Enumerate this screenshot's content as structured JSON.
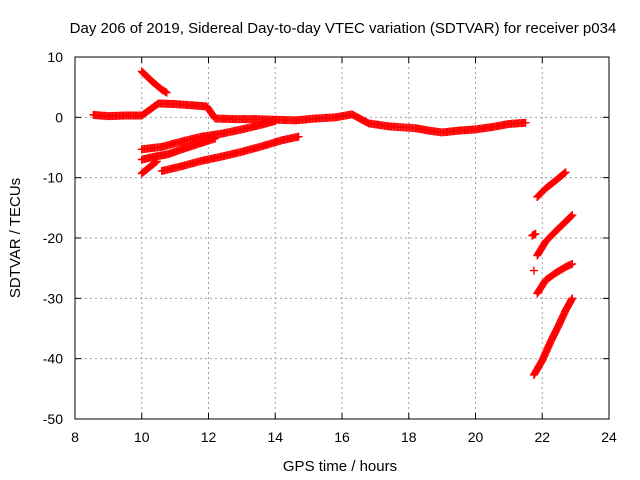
{
  "chart_data": {
    "type": "scatter",
    "title": "Day 206 of 2019, Sidereal Day-to-day VTEC variation (SDTVAR) for receiver p034",
    "xlabel": "GPS time / hours",
    "ylabel": "SDTVAR / TECUs",
    "xlim": [
      8,
      24
    ],
    "ylim": [
      -50,
      10
    ],
    "xticks": [
      8,
      10,
      12,
      14,
      16,
      18,
      20,
      22,
      24
    ],
    "yticks": [
      -50,
      -40,
      -30,
      -20,
      -10,
      0,
      10
    ],
    "grid": true,
    "legend": "none",
    "marker": "plus",
    "color": "#ff0000",
    "series": [
      {
        "points": [
          [
            8.55,
            0.4
          ],
          [
            9.0,
            0.2
          ],
          [
            9.5,
            0.3
          ],
          [
            10.0,
            0.3
          ],
          [
            10.5,
            2.3
          ],
          [
            11.0,
            2.2
          ],
          [
            11.5,
            2.0
          ],
          [
            11.95,
            1.8
          ],
          [
            12.2,
            -0.2
          ],
          [
            12.8,
            -0.3
          ],
          [
            13.4,
            -0.3
          ],
          [
            14.0,
            -0.4
          ],
          [
            14.6,
            -0.5
          ],
          [
            15.2,
            -0.2
          ],
          [
            15.8,
            0.0
          ],
          [
            16.3,
            0.5
          ],
          [
            16.8,
            -1.0
          ],
          [
            17.4,
            -1.5
          ],
          [
            18.2,
            -1.8
          ],
          [
            18.6,
            -2.2
          ],
          [
            19.0,
            -2.5
          ],
          [
            19.5,
            -2.2
          ],
          [
            20.0,
            -2.0
          ],
          [
            20.5,
            -1.6
          ],
          [
            21.0,
            -1.1
          ],
          [
            21.5,
            -0.9
          ]
        ]
      },
      {
        "points": [
          [
            10.0,
            7.6
          ],
          [
            10.3,
            6.0
          ],
          [
            10.6,
            4.6
          ],
          [
            10.75,
            4.1
          ]
        ]
      },
      {
        "points": [
          [
            10.0,
            -5.3
          ],
          [
            10.6,
            -4.9
          ],
          [
            11.2,
            -4.0
          ],
          [
            11.8,
            -3.2
          ],
          [
            12.4,
            -2.7
          ],
          [
            13.0,
            -2.0
          ],
          [
            13.6,
            -1.2
          ],
          [
            14.0,
            -0.6
          ]
        ]
      },
      {
        "points": [
          [
            10.0,
            -7.0
          ],
          [
            10.4,
            -6.5
          ],
          [
            10.8,
            -6.1
          ],
          [
            11.2,
            -5.3
          ],
          [
            11.7,
            -4.4
          ],
          [
            12.2,
            -3.5
          ]
        ]
      },
      {
        "points": [
          [
            10.0,
            -9.3
          ],
          [
            10.2,
            -8.4
          ],
          [
            10.45,
            -7.3
          ]
        ]
      },
      {
        "points": [
          [
            10.6,
            -8.9
          ],
          [
            11.2,
            -8.1
          ],
          [
            11.8,
            -7.2
          ],
          [
            12.4,
            -6.5
          ],
          [
            13.0,
            -5.7
          ],
          [
            13.6,
            -4.8
          ],
          [
            14.2,
            -3.8
          ],
          [
            14.7,
            -3.2
          ]
        ]
      },
      {
        "points": [
          [
            21.7,
            -19.6
          ],
          [
            21.8,
            -19.3
          ]
        ]
      },
      {
        "points": [
          [
            21.75,
            -25.4
          ]
        ]
      },
      {
        "points": [
          [
            21.85,
            -13.2
          ],
          [
            22.1,
            -11.8
          ],
          [
            22.4,
            -10.5
          ],
          [
            22.7,
            -9.1
          ]
        ]
      },
      {
        "points": [
          [
            21.85,
            -22.9
          ],
          [
            22.1,
            -20.6
          ],
          [
            22.4,
            -18.9
          ],
          [
            22.7,
            -17.3
          ],
          [
            22.9,
            -16.2
          ]
        ]
      },
      {
        "points": [
          [
            21.85,
            -29.2
          ],
          [
            22.1,
            -27.0
          ],
          [
            22.4,
            -25.8
          ],
          [
            22.7,
            -24.8
          ],
          [
            22.9,
            -24.3
          ]
        ]
      },
      {
        "points": [
          [
            21.75,
            -42.7
          ],
          [
            22.0,
            -40.3
          ],
          [
            22.25,
            -37.2
          ],
          [
            22.5,
            -34.4
          ],
          [
            22.7,
            -32.0
          ],
          [
            22.9,
            -30.0
          ]
        ]
      }
    ]
  }
}
